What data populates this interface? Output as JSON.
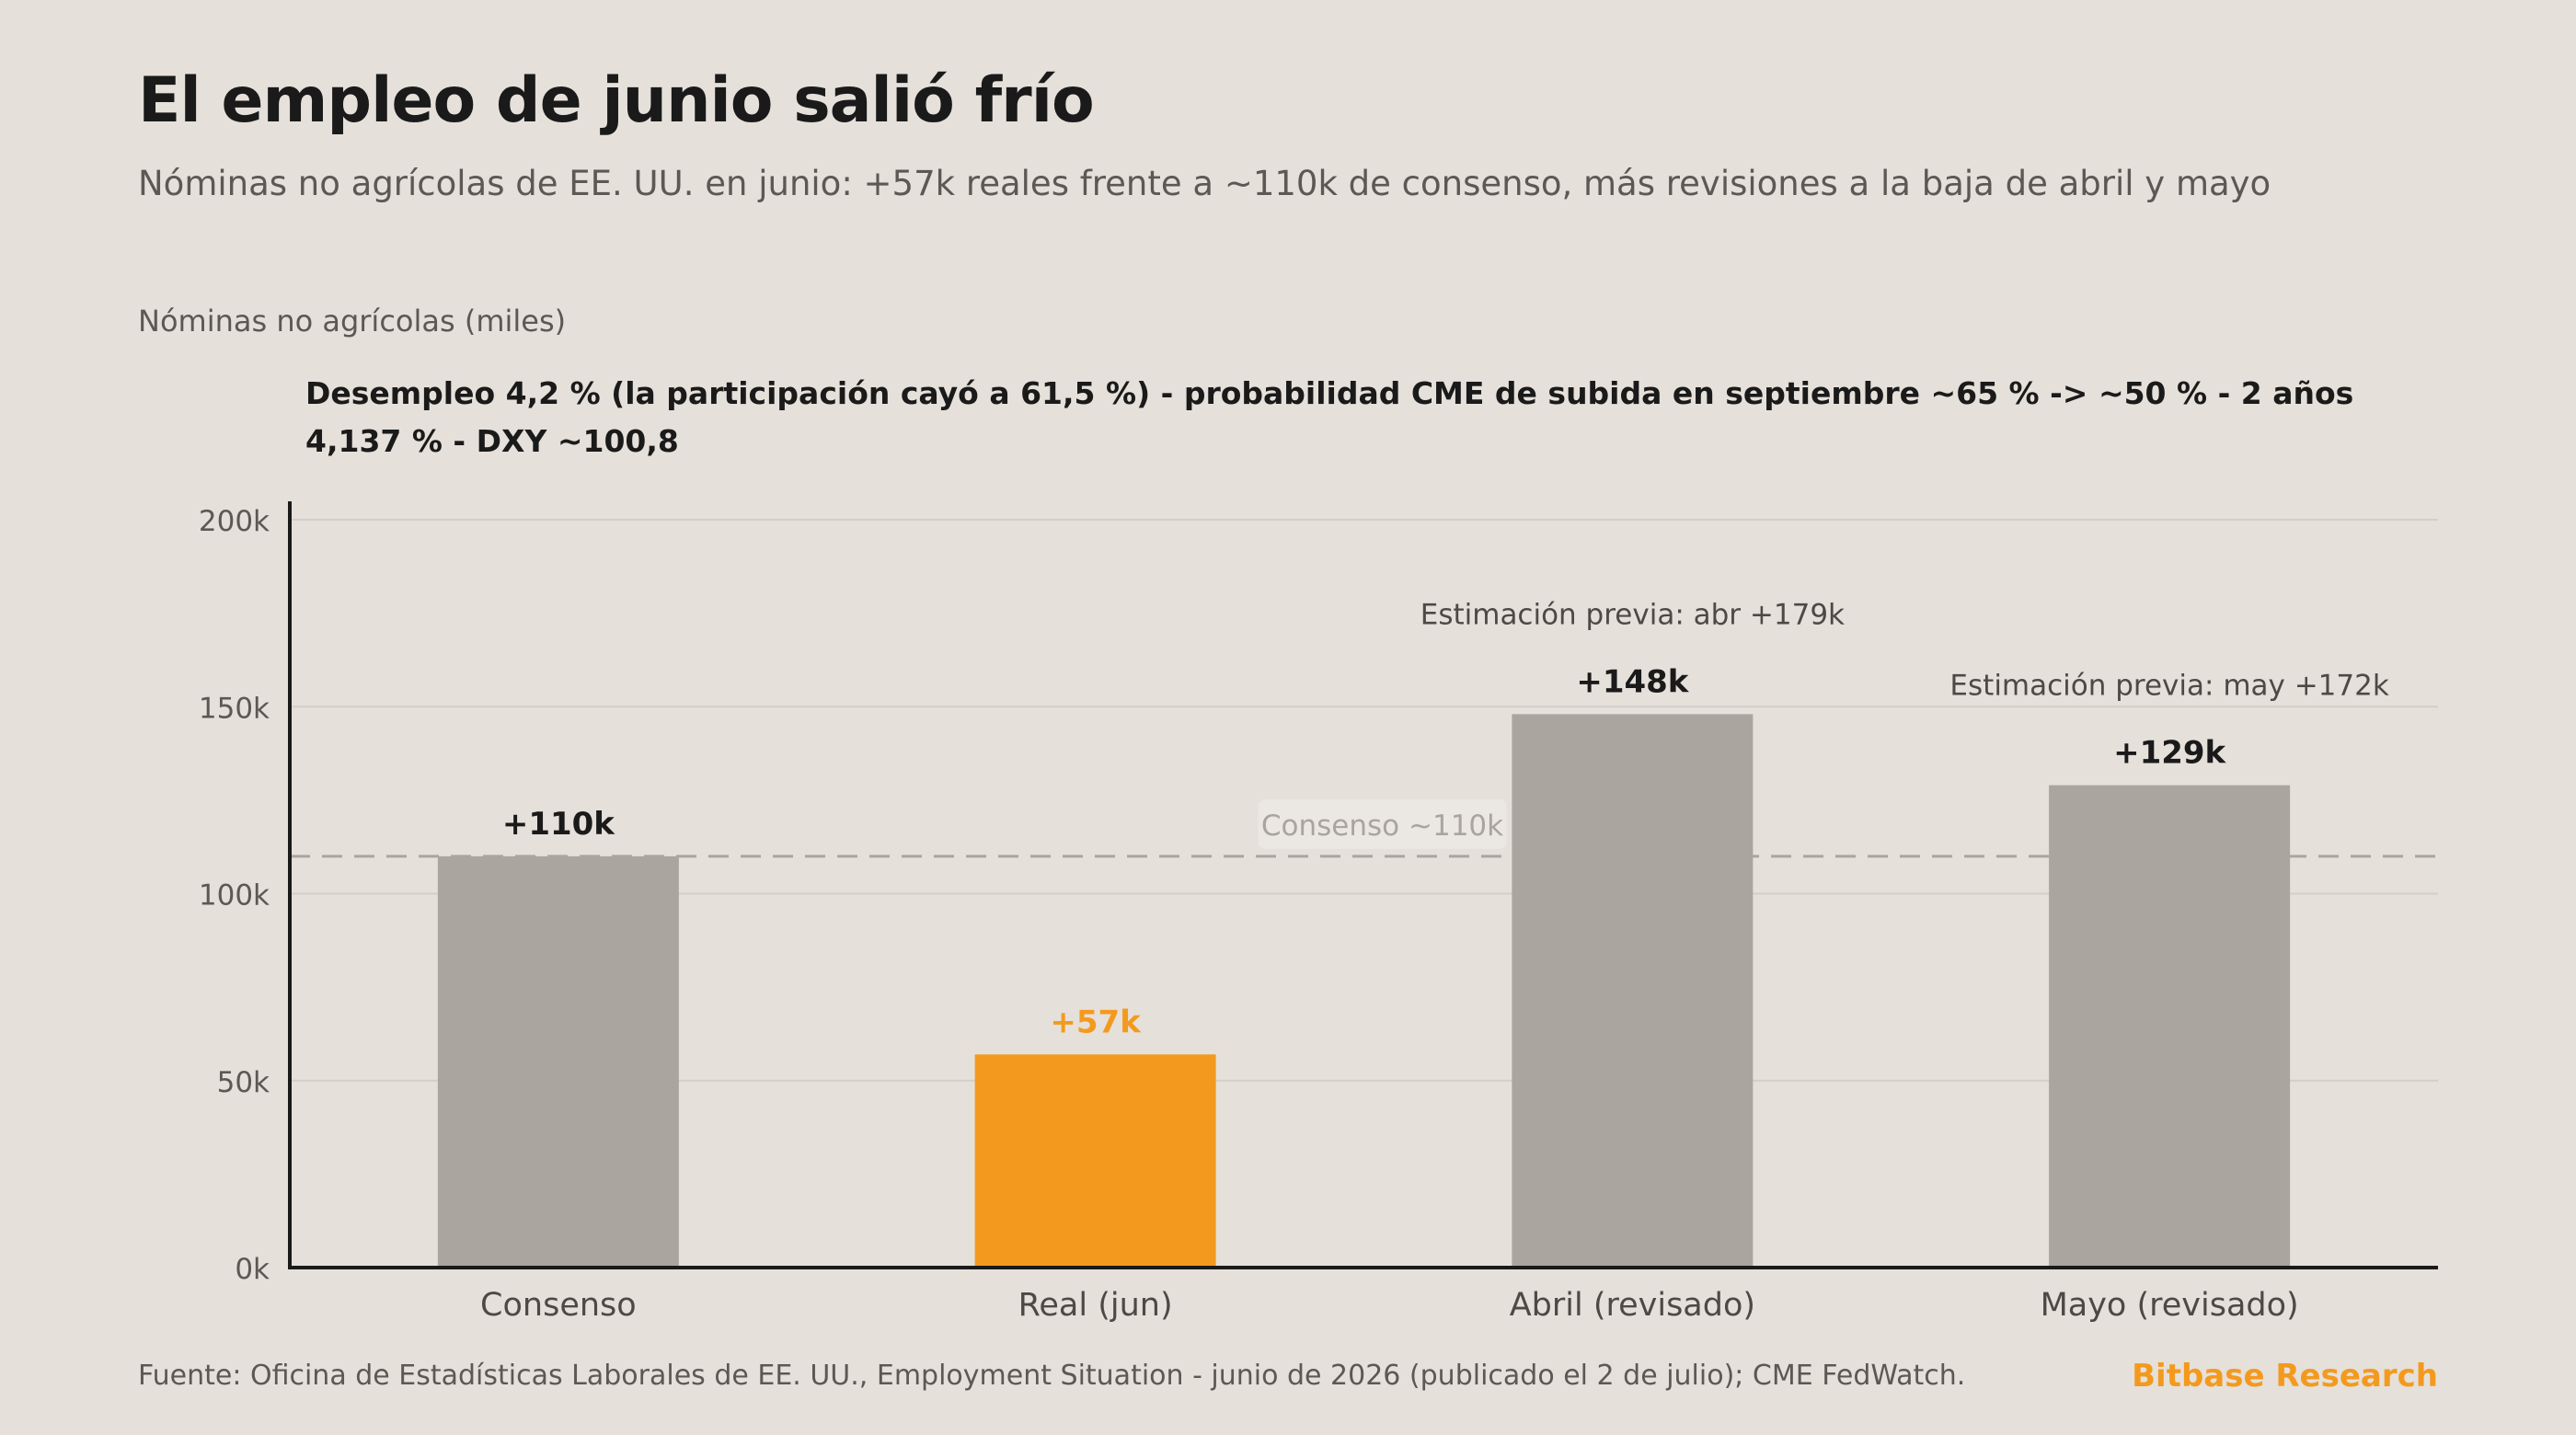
{
  "header": {
    "title": "El empleo de junio salió frío",
    "subtitle": "Nóminas no agrícolas de EE. UU. en junio: +57k reales frente a ~110k de consenso, más revisiones a la baja de abril y mayo"
  },
  "annotation": "Desempleo 4,2 % (la participación cayó a 61,5 %) - probabilidad CME de subida en septiembre ~65 % -> ~50 % - 2 años 4,137 % - DXY ~100,8",
  "footer": {
    "source": "Fuente: Oficina de Estadísticas Laborales de EE. UU., Employment Situation - junio de 2026 (publicado el 2 de julio); CME FedWatch.",
    "brand": "Bitbase Research"
  },
  "colors": {
    "bar_neutral": "#aaa59f",
    "bar_highlight": "#f39a1e",
    "reference_line": "#aaa59f",
    "background": "#e5e0da"
  },
  "chart_data": {
    "type": "bar",
    "ylabel": "Nóminas no agrícolas (miles)",
    "categories": [
      "Consenso",
      "Real (jun)",
      "Abril (revisado)",
      "Mayo (revisado)"
    ],
    "values": [
      110,
      57,
      148,
      129
    ],
    "value_labels": [
      "+110k",
      "+57k",
      "+148k",
      "+129k"
    ],
    "highlight_index": 1,
    "ylim": [
      0,
      200
    ],
    "yticks": [
      0,
      50,
      100,
      150,
      200
    ],
    "ytick_labels": [
      "0k",
      "50k",
      "100k",
      "150k",
      "200k"
    ],
    "grid": true,
    "reference_line": {
      "value": 110,
      "label": "Consenso ~110k"
    },
    "bar_notes": [
      {
        "index": 2,
        "text": "Estimación previa: abr +179k"
      },
      {
        "index": 3,
        "text": "Estimación previa: may +172k"
      }
    ]
  }
}
